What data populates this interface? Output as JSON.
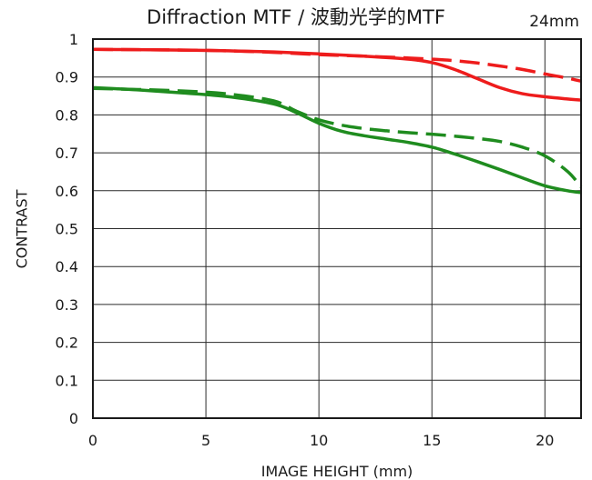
{
  "chart_data": {
    "type": "line",
    "title": "Diffraction MTF / 波動光学的MTF",
    "focal_length": "24mm",
    "xlabel": "IMAGE HEIGHT (mm)",
    "ylabel": "CONTRAST",
    "xlim": [
      0,
      21.6
    ],
    "ylim": [
      0,
      1
    ],
    "x_ticks": [
      0,
      5,
      10,
      15,
      20
    ],
    "y_ticks": [
      0,
      0.1,
      0.2,
      0.3,
      0.4,
      0.5,
      0.6,
      0.7,
      0.8,
      0.9,
      1
    ],
    "grid": true,
    "series": [
      {
        "name": "red-solid",
        "color": "#ee1c1c",
        "dash": "solid",
        "x": [
          0,
          2,
          4,
          6,
          8,
          10,
          12,
          14,
          15,
          16,
          17,
          18,
          19,
          20,
          21,
          21.6
        ],
        "y": [
          0.973,
          0.972,
          0.971,
          0.969,
          0.966,
          0.961,
          0.955,
          0.947,
          0.938,
          0.92,
          0.896,
          0.872,
          0.856,
          0.848,
          0.842,
          0.839
        ]
      },
      {
        "name": "red-dashed",
        "color": "#ee1c1c",
        "dash": "dashed",
        "x": [
          0,
          2,
          4,
          6,
          8,
          10,
          12,
          14,
          15,
          16,
          17,
          18,
          19,
          20,
          21,
          21.6
        ],
        "y": [
          0.973,
          0.972,
          0.971,
          0.969,
          0.965,
          0.959,
          0.955,
          0.95,
          0.947,
          0.943,
          0.937,
          0.929,
          0.92,
          0.908,
          0.897,
          0.889
        ]
      },
      {
        "name": "green-solid",
        "color": "#1f8c1f",
        "dash": "solid",
        "x": [
          0,
          2,
          4,
          6,
          8,
          9,
          10,
          11,
          12,
          13,
          14,
          15,
          16,
          17,
          18,
          19,
          20,
          21,
          21.6
        ],
        "y": [
          0.872,
          0.866,
          0.858,
          0.848,
          0.829,
          0.806,
          0.778,
          0.757,
          0.745,
          0.736,
          0.727,
          0.715,
          0.697,
          0.677,
          0.656,
          0.634,
          0.613,
          0.6,
          0.595
        ]
      },
      {
        "name": "green-dashed",
        "color": "#1f8c1f",
        "dash": "dashed",
        "x": [
          0,
          2,
          4,
          6,
          8,
          9,
          10,
          11,
          12,
          13,
          14,
          15,
          16,
          17,
          18,
          19,
          20,
          21,
          21.6
        ],
        "y": [
          0.87,
          0.867,
          0.863,
          0.855,
          0.837,
          0.81,
          0.787,
          0.773,
          0.764,
          0.758,
          0.753,
          0.749,
          0.744,
          0.738,
          0.73,
          0.715,
          0.692,
          0.651,
          0.61
        ]
      }
    ]
  }
}
